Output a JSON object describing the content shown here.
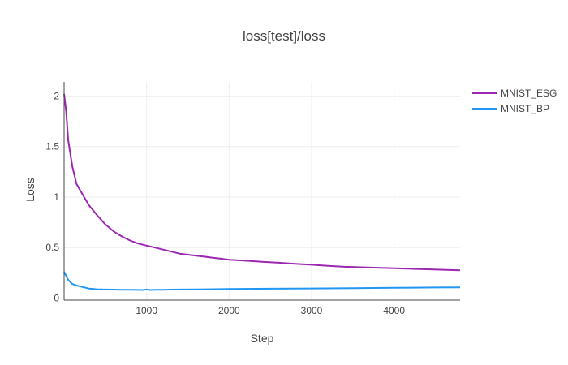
{
  "chart_data": {
    "type": "line",
    "title": "loss[test]/loss",
    "xlabel": "Step",
    "ylabel": "Loss",
    "xlim": [
      0,
      4800
    ],
    "ylim": [
      -0.02,
      2.14
    ],
    "xticks": [
      1000,
      2000,
      3000,
      4000
    ],
    "xtick_labels": [
      "1000",
      "2000",
      "3000",
      "4000"
    ],
    "yticks": [
      0,
      0.5,
      1,
      1.5,
      2
    ],
    "ytick_labels": [
      "0",
      "0.5",
      "1",
      "1.5",
      "2"
    ],
    "grid": true,
    "legend_position": "right",
    "series": [
      {
        "name": "MNIST_ESG",
        "color": "#9c27b0",
        "x": [
          0,
          25,
          50,
          100,
          150,
          200,
          300,
          400,
          500,
          600,
          700,
          800,
          900,
          1000,
          1100,
          1200,
          1300,
          1400,
          1500,
          1600,
          1700,
          1800,
          1900,
          2000,
          2200,
          2400,
          2600,
          2800,
          3000,
          3200,
          3400,
          3600,
          3800,
          4000,
          4200,
          4400,
          4600,
          4800
        ],
        "y": [
          2.02,
          1.85,
          1.56,
          1.3,
          1.13,
          1.06,
          0.92,
          0.82,
          0.73,
          0.66,
          0.61,
          0.57,
          0.54,
          0.52,
          0.5,
          0.48,
          0.46,
          0.44,
          0.43,
          0.42,
          0.41,
          0.4,
          0.39,
          0.38,
          0.37,
          0.36,
          0.35,
          0.34,
          0.33,
          0.32,
          0.31,
          0.305,
          0.3,
          0.295,
          0.29,
          0.285,
          0.28,
          0.275
        ]
      },
      {
        "name": "MNIST_BP",
        "color": "#2196f3",
        "x": [
          0,
          25,
          50,
          100,
          150,
          200,
          300,
          400,
          500,
          600,
          700,
          800,
          900,
          950,
          1000,
          1050,
          1100,
          1200,
          1300,
          1400,
          1600,
          2000,
          2500,
          3000,
          3500,
          4000,
          4500,
          4800
        ],
        "y": [
          0.26,
          0.22,
          0.18,
          0.14,
          0.125,
          0.115,
          0.095,
          0.088,
          0.085,
          0.084,
          0.083,
          0.082,
          0.081,
          0.08,
          0.085,
          0.08,
          0.082,
          0.083,
          0.084,
          0.085,
          0.087,
          0.09,
          0.093,
          0.096,
          0.099,
          0.102,
          0.105,
          0.107
        ]
      }
    ]
  }
}
